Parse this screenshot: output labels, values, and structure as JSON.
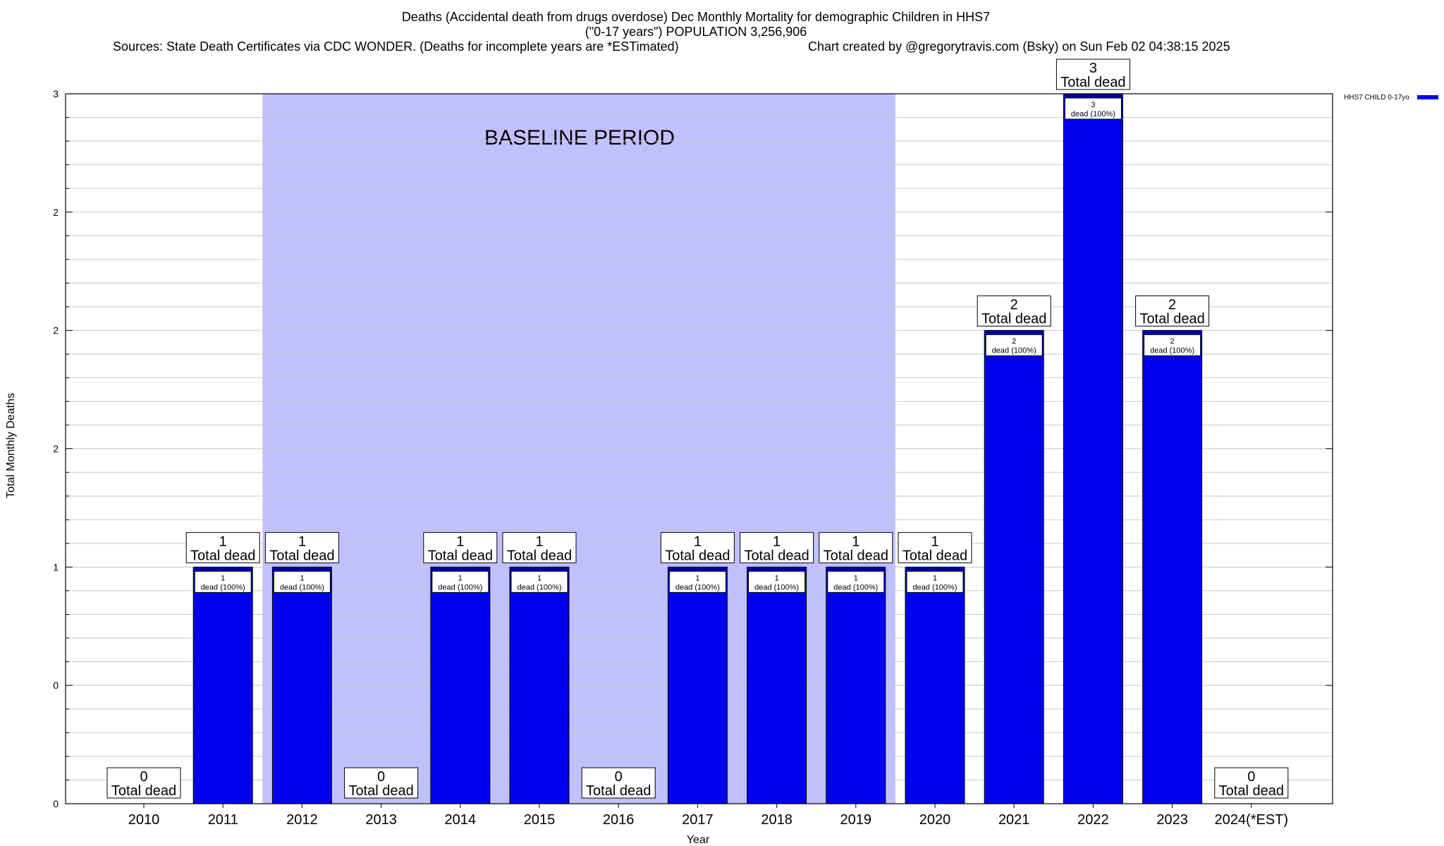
{
  "title": {
    "line1": "Deaths (Accidental death from drugs overdose) Dec Monthly Mortality for demographic Children in HHS7",
    "line2": "(\"0-17 years\") POPULATION 3,256,906",
    "sources": "Sources: State Death Certificates via CDC WONDER. (Deaths for incomplete years are *ESTimated)",
    "credit": "Chart created by @gregorytravis.com (Bsky) on Sun Feb 02 04:38:15 2025"
  },
  "chart_data": {
    "type": "bar",
    "xlabel": "Year",
    "ylabel": "Total Monthly Deaths",
    "ylim": [
      0,
      3
    ],
    "yticks": [
      0,
      0.5,
      1,
      1.5,
      2,
      2.5,
      3
    ],
    "ytick_labels": [
      "0",
      "0",
      "1",
      "2",
      "2",
      "2",
      "3"
    ],
    "categories": [
      "2010",
      "2011",
      "2012",
      "2013",
      "2014",
      "2015",
      "2016",
      "2017",
      "2018",
      "2019",
      "2020",
      "2021",
      "2022",
      "2023",
      "2024(*EST)"
    ],
    "series": [
      {
        "name": "HHS7 CHILD 0-17yo",
        "color": "#0000ee",
        "values": [
          0,
          1,
          1,
          0,
          1,
          1,
          0,
          1,
          1,
          1,
          1,
          2,
          3,
          2,
          0
        ]
      }
    ],
    "total_label": "Total dead",
    "inner_label": "dead (100%)",
    "baseline": {
      "label": "BASELINE PERIOD",
      "from_index": 1.5,
      "to_index": 9.5,
      "color": "#c0c0ff"
    },
    "legend_placement": "top-right outside plot",
    "grid": true
  }
}
